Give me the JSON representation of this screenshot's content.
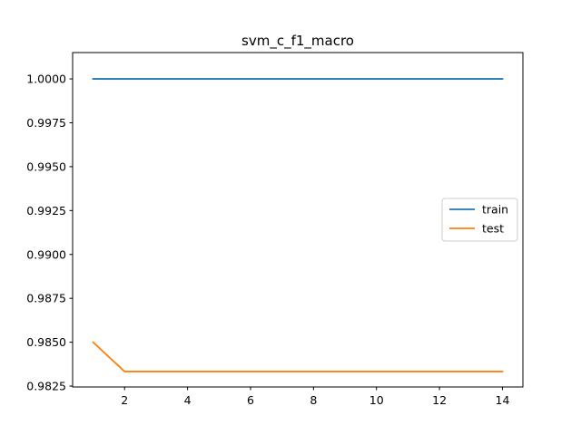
{
  "chart_data": {
    "type": "line",
    "title": "svm_c_f1_macro",
    "xlabel": "",
    "ylabel": "",
    "x": [
      1,
      2,
      3,
      4,
      5,
      6,
      7,
      8,
      9,
      10,
      11,
      12,
      13,
      14
    ],
    "xlim": [
      0.35,
      14.65
    ],
    "ylim": [
      0.98245,
      1.0015
    ],
    "x_ticks": [
      2,
      4,
      6,
      8,
      10,
      12,
      14
    ],
    "y_ticks": [
      0.9825,
      0.985,
      0.9875,
      0.99,
      0.9925,
      0.995,
      0.9975,
      1.0
    ],
    "y_tick_labels": [
      "0.9825",
      "0.9850",
      "0.9875",
      "0.9900",
      "0.9925",
      "0.9950",
      "0.9975",
      "1.0000"
    ],
    "grid": false,
    "legend_position": "center-right",
    "series": [
      {
        "name": "train",
        "color": "#1f77b4",
        "values": [
          1.0,
          1.0,
          1.0,
          1.0,
          1.0,
          1.0,
          1.0,
          1.0,
          1.0,
          1.0,
          1.0,
          1.0,
          1.0,
          1.0
        ]
      },
      {
        "name": "test",
        "color": "#ff7f0e",
        "values": [
          0.985,
          0.98333,
          0.98333,
          0.98333,
          0.98333,
          0.98333,
          0.98333,
          0.98333,
          0.98333,
          0.98333,
          0.98333,
          0.98333,
          0.98333,
          0.98333
        ]
      }
    ]
  }
}
